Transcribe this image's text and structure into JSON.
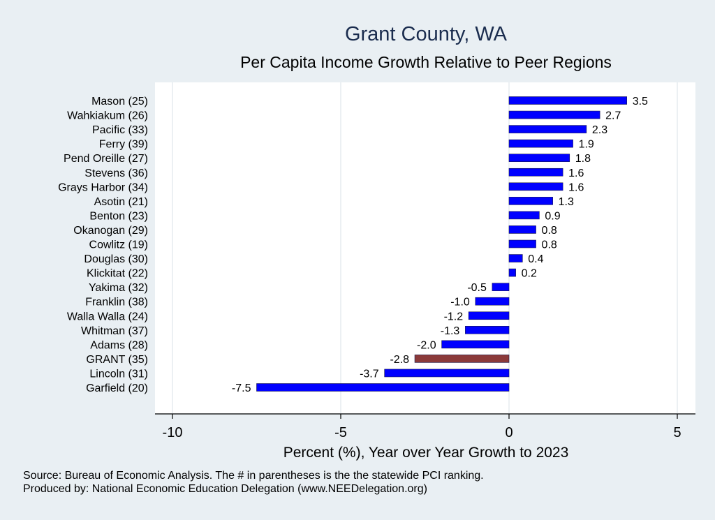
{
  "chart_data": {
    "type": "bar",
    "orientation": "horizontal",
    "title": "Grant County, WA",
    "subtitle": "Per Capita Income Growth Relative to Peer Regions",
    "xlabel": "Percent (%), Year over Year Growth to 2023",
    "ylabel": "",
    "xlim": [
      -10,
      5
    ],
    "xticks": [
      -10,
      -5,
      0,
      5
    ],
    "xtick_labels": [
      "-10",
      "-5",
      "0",
      "5"
    ],
    "grid": true,
    "colors": {
      "default": "#0000ff",
      "highlight": "#8b3a3a",
      "background": "#e9eff3",
      "plot_background": "#ffffff",
      "title": "#1a2c4e"
    },
    "highlight_category": "GRANT (35)",
    "categories": [
      "Mason (25)",
      "Wahkiakum (26)",
      "Pacific (33)",
      "Ferry (39)",
      "Pend Oreille (27)",
      "Stevens (36)",
      "Grays Harbor (34)",
      "Asotin (21)",
      "Benton (23)",
      "Okanogan (29)",
      "Cowlitz (19)",
      "Douglas (30)",
      "Klickitat (22)",
      "Yakima (32)",
      "Franklin (38)",
      "Walla Walla (24)",
      "Whitman (37)",
      "Adams (28)",
      "GRANT (35)",
      "Lincoln (31)",
      "Garfield (20)"
    ],
    "values": [
      3.5,
      2.7,
      2.3,
      1.9,
      1.8,
      1.6,
      1.6,
      1.3,
      0.9,
      0.8,
      0.8,
      0.4,
      0.2,
      -0.5,
      -1.0,
      -1.2,
      -1.3,
      -2.0,
      -2.8,
      -3.7,
      -7.5
    ],
    "value_labels": [
      "3.5",
      "2.7",
      "2.3",
      "1.9",
      "1.8",
      "1.6",
      "1.6",
      "1.3",
      "0.9",
      "0.8",
      "0.8",
      "0.4",
      "0.2",
      "-0.5",
      "-1.0",
      "-1.2",
      "-1.3",
      "-2.0",
      "-2.8",
      "-3.7",
      "-7.5"
    ]
  },
  "footer": {
    "source": "Source: Bureau of Economic Analysis. The # in parentheses is the the statewide PCI ranking.",
    "produced_by": "Produced by: National Economic Education Delegation (www.NEEDelegation.org)"
  }
}
